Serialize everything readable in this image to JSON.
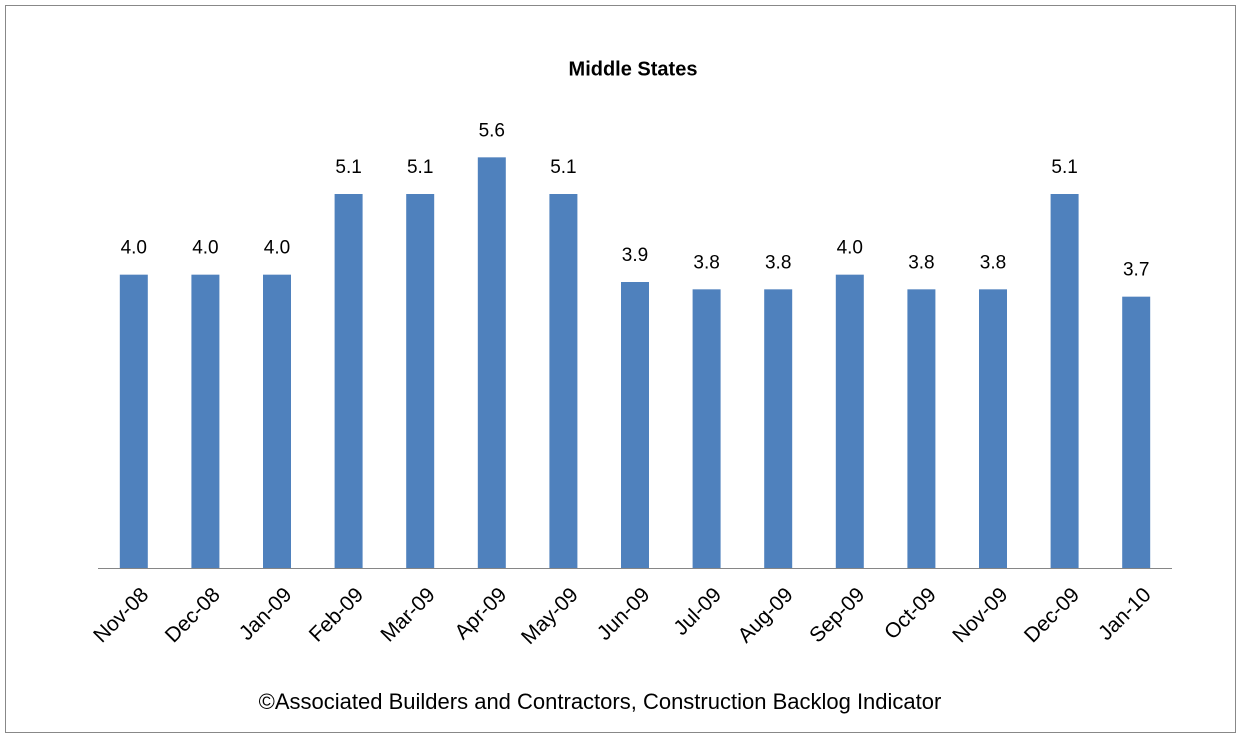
{
  "chart_data": {
    "type": "bar",
    "title": "Middle States",
    "categories": [
      "Nov-08",
      "Dec-08",
      "Jan-09",
      "Feb-09",
      "Mar-09",
      "Apr-09",
      "May-09",
      "Jun-09",
      "Jul-09",
      "Aug-09",
      "Sep-09",
      "Oct-09",
      "Nov-09",
      "Dec-09",
      "Jan-10"
    ],
    "values": [
      4.0,
      4.0,
      4.0,
      5.1,
      5.1,
      5.6,
      5.1,
      3.9,
      3.8,
      3.8,
      4.0,
      3.8,
      3.8,
      5.1,
      3.7
    ],
    "value_labels": [
      "4.0",
      "4.0",
      "4.0",
      "5.1",
      "5.1",
      "5.6",
      "5.1",
      "3.9",
      "3.8",
      "3.8",
      "4.0",
      "3.8",
      "3.8",
      "5.1",
      "3.7"
    ],
    "color": "#4f81bd",
    "ylim": [
      0,
      6
    ],
    "source": "©Associated Builders and Contractors, Construction Backlog Indicator"
  }
}
